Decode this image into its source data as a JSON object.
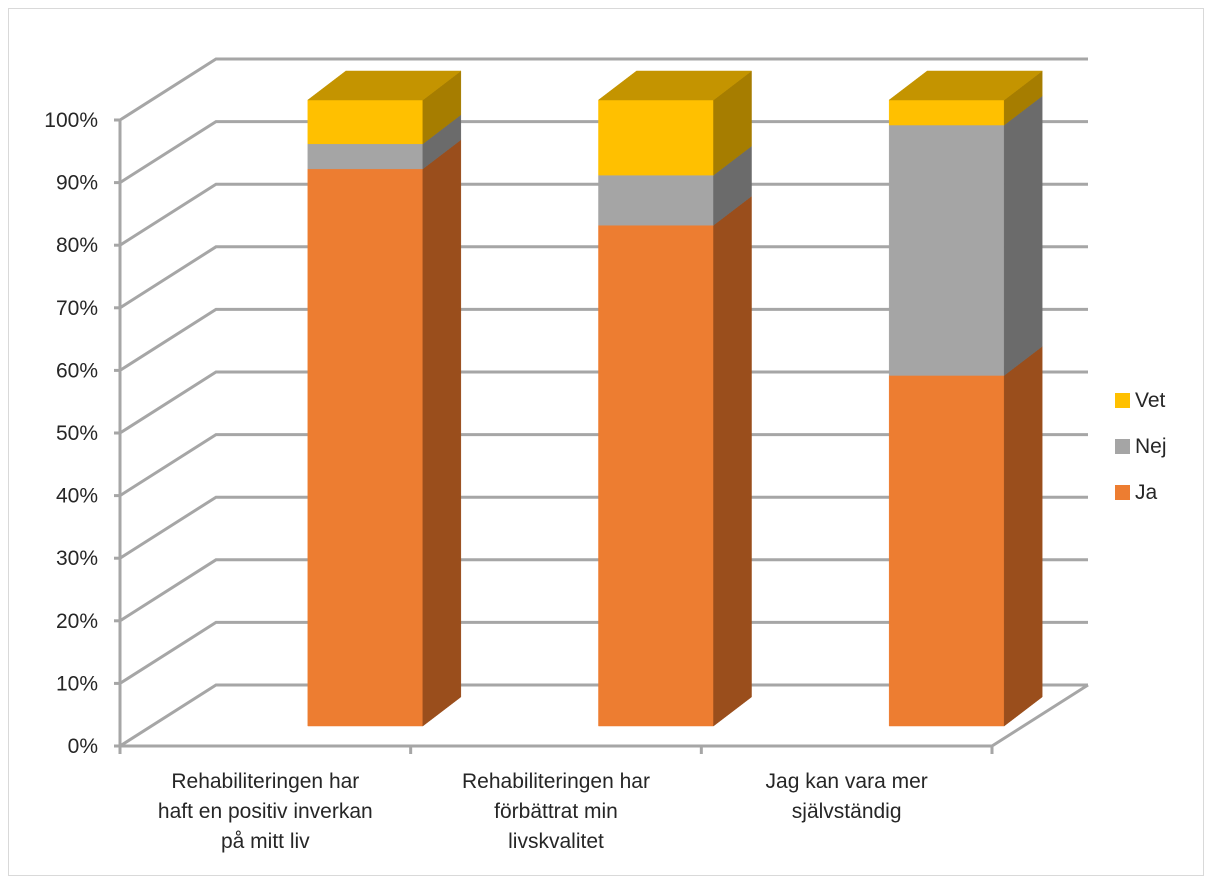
{
  "chart_data": {
    "type": "bar",
    "stacked": true,
    "normalized": true,
    "three_d": true,
    "title": "",
    "xlabel": "",
    "ylabel": "",
    "ylim": [
      0,
      100
    ],
    "y_ticks": [
      "0%",
      "10%",
      "20%",
      "30%",
      "40%",
      "50%",
      "60%",
      "70%",
      "80%",
      "90%",
      "100%"
    ],
    "categories": [
      [
        "Rehabiliteringen har",
        "haft en positiv inverkan",
        "på mitt liv"
      ],
      [
        "Rehabiliteringen har",
        "förbättrat min",
        "livskvalitet"
      ],
      [
        "Jag kan vara mer",
        "självständig"
      ]
    ],
    "series": [
      {
        "name": "Ja",
        "values": [
          89,
          80,
          56
        ]
      },
      {
        "name": "Nej",
        "values": [
          4,
          8,
          40
        ]
      },
      {
        "name": "Vet",
        "values": [
          7,
          12,
          4
        ]
      }
    ],
    "legend_placement": "right",
    "legend_order": [
      "Vet",
      "Nej",
      "Ja"
    ],
    "grid": true,
    "colors": {
      "Ja": {
        "front": "#ed7d31",
        "side": "#9a4e1c",
        "top": "#c56420"
      },
      "Nej": {
        "front": "#a5a5a5",
        "side": "#6b6b6b",
        "top": "#878787"
      },
      "Vet": {
        "front": "#ffc000",
        "side": "#a67d00",
        "top": "#c49400"
      },
      "grid": "#a6a6a6"
    }
  }
}
